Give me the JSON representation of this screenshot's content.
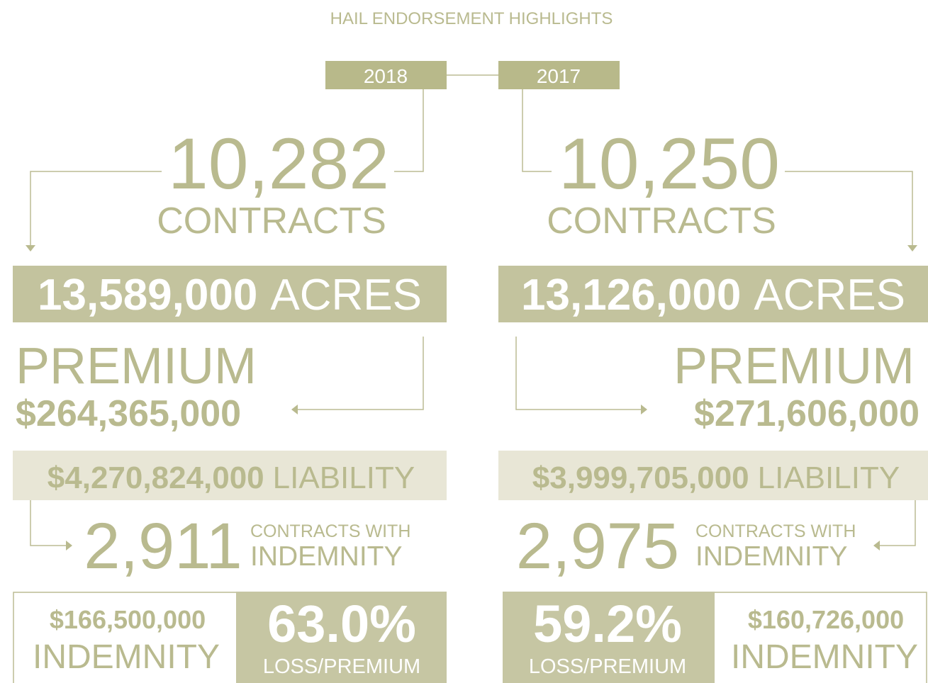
{
  "header": {
    "title": "HAIL ENDORSEMENT HIGHLIGHTS"
  },
  "columns": [
    {
      "year": "2018",
      "contracts": "10,282",
      "contracts_label": "CONTRACTS",
      "acres_value": "13,589,000",
      "acres_label": "ACRES",
      "premium_label": "PREMIUM",
      "premium_value": "$264,365,000",
      "liability_value": "$4,270,824,000",
      "liability_label": "LIABILITY",
      "indemnity_contracts": "2,911",
      "indemnity_contracts_label": "CONTRACTS WITH",
      "indemnity_contracts_label_2": "INDEMNITY",
      "indemnity_value": "$166,500,000",
      "indemnity_label": "INDEMNITY",
      "loss_ratio": "63.0%",
      "loss_label": "LOSS/PREMIUM"
    },
    {
      "year": "2017",
      "contracts": "10,250",
      "contracts_label": "CONTRACTS",
      "acres_value": "13,126,000",
      "acres_label": "ACRES",
      "premium_label": "PREMIUM",
      "premium_value": "$271,606,000",
      "liability_value": "$3,999,705,000",
      "liability_label": "LIABILITY",
      "indemnity_contracts": "2,975",
      "indemnity_contracts_label": "CONTRACTS WITH",
      "indemnity_contracts_label_2": "INDEMNITY",
      "indemnity_value": "$160,726,000",
      "indemnity_label": "INDEMNITY",
      "loss_ratio": "59.2%",
      "loss_label": "LOSS/PREMIUM"
    }
  ]
}
